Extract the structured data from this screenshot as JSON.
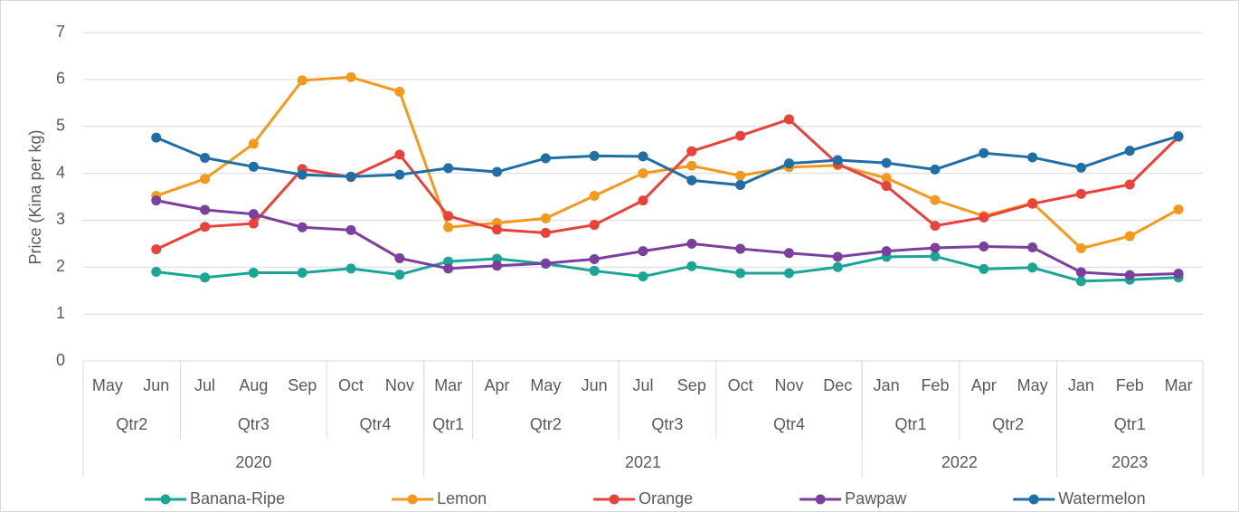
{
  "chart_data": {
    "type": "line",
    "y_label": "Price (Kina per kg)",
    "categories": [
      "May",
      "Jun",
      "Jul",
      "Aug",
      "Sep",
      "Oct",
      "Nov",
      "Mar",
      "Apr",
      "May",
      "Jun",
      "Jul",
      "Sep",
      "Oct",
      "Nov",
      "Dec",
      "Jan",
      "Feb",
      "Apr",
      "May",
      "Jan",
      "Feb",
      "Mar"
    ],
    "quarters": [
      {
        "label": "Qtr2",
        "span": 2
      },
      {
        "label": "Qtr3",
        "span": 3
      },
      {
        "label": "Qtr4",
        "span": 2
      },
      {
        "label": "Qtr1",
        "span": 1
      },
      {
        "label": "Qtr2",
        "span": 3
      },
      {
        "label": "Qtr3",
        "span": 2
      },
      {
        "label": "Qtr4",
        "span": 3
      },
      {
        "label": "Qtr1",
        "span": 2
      },
      {
        "label": "Qtr2",
        "span": 2
      },
      {
        "label": "Qtr1",
        "span": 3
      }
    ],
    "years": [
      {
        "label": "2020",
        "span": 7
      },
      {
        "label": "2021",
        "span": 9
      },
      {
        "label": "2022",
        "span": 4
      },
      {
        "label": "2023",
        "span": 3
      }
    ],
    "series": [
      {
        "name": "Banana-Ripe",
        "color": "#1aa595",
        "values": [
          null,
          1.9,
          1.78,
          1.88,
          1.88,
          1.97,
          1.84,
          2.12,
          2.18,
          2.07,
          1.92,
          1.8,
          2.02,
          1.87,
          1.87,
          2.0,
          2.22,
          2.23,
          1.96,
          1.99,
          1.7,
          1.73,
          1.78
        ]
      },
      {
        "name": "Lemon",
        "color": "#f3991e",
        "values": [
          null,
          3.52,
          3.88,
          4.63,
          5.98,
          6.05,
          5.74,
          2.85,
          2.94,
          3.04,
          3.52,
          4.0,
          4.16,
          3.95,
          4.13,
          4.17,
          3.9,
          3.43,
          3.09,
          3.37,
          2.4,
          2.66,
          3.23
        ]
      },
      {
        "name": "Orange",
        "color": "#e8423a",
        "values": [
          null,
          2.38,
          2.86,
          2.93,
          4.09,
          3.92,
          4.4,
          3.09,
          2.8,
          2.73,
          2.9,
          3.42,
          4.47,
          4.8,
          5.15,
          4.2,
          3.73,
          2.88,
          3.06,
          3.35,
          3.56,
          3.76,
          4.78
        ]
      },
      {
        "name": "Pawpaw",
        "color": "#7b3f9d",
        "values": [
          null,
          3.42,
          3.22,
          3.13,
          2.85,
          2.79,
          2.19,
          1.97,
          2.03,
          2.08,
          2.17,
          2.34,
          2.5,
          2.39,
          2.3,
          2.22,
          2.34,
          2.41,
          2.44,
          2.42,
          1.89,
          1.83,
          1.86
        ]
      },
      {
        "name": "Watermelon",
        "color": "#1f6ea6",
        "values": [
          null,
          4.76,
          4.33,
          4.14,
          3.97,
          3.93,
          3.97,
          4.11,
          4.03,
          4.32,
          4.37,
          4.36,
          3.85,
          3.75,
          4.21,
          4.28,
          4.22,
          4.08,
          4.43,
          4.34,
          4.12,
          4.48,
          4.79
        ]
      }
    ],
    "ylim": [
      0,
      7
    ],
    "yticks": [
      0,
      1,
      2,
      3,
      4,
      5,
      6,
      7
    ],
    "grid": true,
    "legend": "bottom"
  }
}
